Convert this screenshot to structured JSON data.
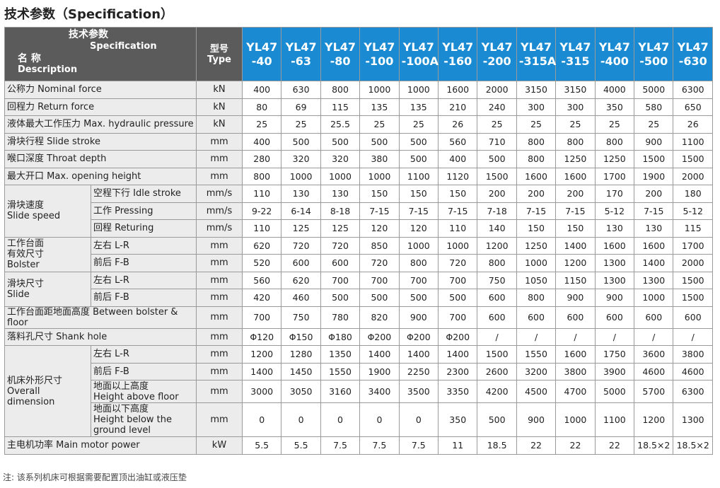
{
  "title": "技术参数（Specification）",
  "header": {
    "spec_cn": "技术参数",
    "spec_en": "Specification",
    "desc_cn": "名 称",
    "desc_en": "Description",
    "type_cn": "型号",
    "type_en": "Type",
    "models": [
      "YL47\n-40",
      "YL47\n-63",
      "YL47\n-80",
      "YL47\n-100",
      "YL47\n-100A",
      "YL47\n-160",
      "YL47\n-200",
      "YL47\n-315A",
      "YL47\n-315",
      "YL47\n-400",
      "YL47\n-500",
      "YL47\n-630"
    ]
  },
  "rows": [
    {
      "label": "公称力  Nominal force",
      "unit": "kN",
      "values": [
        "400",
        "630",
        "800",
        "1000",
        "1000",
        "1600",
        "2000",
        "3150",
        "3150",
        "4000",
        "5000",
        "6300"
      ]
    },
    {
      "label": "回程力  Return force",
      "unit": "kN",
      "values": [
        "80",
        "69",
        "115",
        "135",
        "135",
        "210",
        "240",
        "300",
        "300",
        "350",
        "580",
        "650"
      ]
    },
    {
      "label": "液体最大工作压力 Max. hydraulic pressure",
      "unit": "kN",
      "values": [
        "25",
        "25",
        "25.5",
        "25",
        "25",
        "26",
        "25",
        "25",
        "25",
        "25",
        "25",
        "26"
      ]
    },
    {
      "label": "滑块行程  Slide stroke",
      "unit": "mm",
      "values": [
        "400",
        "500",
        "500",
        "500",
        "500",
        "560",
        "710",
        "800",
        "800",
        "800",
        "900",
        "1100"
      ]
    },
    {
      "label": "喉口深度 Throat depth",
      "unit": "mm",
      "values": [
        "280",
        "320",
        "320",
        "380",
        "500",
        "400",
        "500",
        "800",
        "1250",
        "1250",
        "1500",
        "1500"
      ]
    },
    {
      "label": "最大开口  Max. opening height",
      "unit": "mm",
      "values": [
        "800",
        "1000",
        "1000",
        "1000",
        "1100",
        "1120",
        "1500",
        "1600",
        "1600",
        "1700",
        "1900",
        "2000"
      ]
    },
    {
      "group": "滑块速度\n Slide speed",
      "items": [
        {
          "label": "空程下行 Idle stroke",
          "unit": "mm/s",
          "values": [
            "110",
            "130",
            "130",
            "150",
            "150",
            "150",
            "200",
            "200",
            "200",
            "170",
            "200",
            "180"
          ]
        },
        {
          "label": "工作 Pressing",
          "unit": "mm/s",
          "values": [
            "9-22",
            "6-14",
            "8-18",
            "7-15",
            "7-15",
            "7-15",
            "7-18",
            "7-15",
            "7-15",
            "5-12",
            "7-15",
            "5-12"
          ]
        },
        {
          "label": "回程 Returing",
          "unit": "mm/s",
          "values": [
            "110",
            "125",
            "125",
            "120",
            "120",
            "110",
            "140",
            "150",
            "150",
            "130",
            "130",
            "115"
          ]
        }
      ]
    },
    {
      "group": "工作台面\n有效尺寸\n Bolster",
      "items": [
        {
          "label": "左右 L-R",
          "unit": "mm",
          "values": [
            "620",
            "720",
            "720",
            "850",
            "1000",
            "1000",
            "1200",
            "1250",
            "1400",
            "1600",
            "1600",
            "1700"
          ]
        },
        {
          "label": "前后 F-B",
          "unit": "mm",
          "values": [
            "520",
            "600",
            "600",
            "720",
            "800",
            "720",
            "800",
            "1000",
            "1200",
            "1300",
            "1400",
            "2000"
          ]
        }
      ]
    },
    {
      "group": "滑块尺寸\nSlide",
      "items": [
        {
          "label": "左右 L-R",
          "unit": "mm",
          "values": [
            "560",
            "620",
            "700",
            "700",
            "700",
            "700",
            "750",
            "1050",
            "1150",
            "1300",
            "1300",
            "1500"
          ]
        },
        {
          "label": "前后 F-B",
          "unit": "mm",
          "values": [
            "420",
            "460",
            "500",
            "500",
            "500",
            "500",
            "600",
            "800",
            "900",
            "900",
            "1000",
            "1500"
          ]
        }
      ]
    },
    {
      "label": "工作台面距地面高度 Between bolster & floor",
      "unit": "mm",
      "values": [
        "700",
        "750",
        "780",
        "820",
        "900",
        "700",
        "600",
        "600",
        "600",
        "600",
        "600",
        "600"
      ]
    },
    {
      "label": " 落料孔尺寸 Shank hole",
      "unit": "mm",
      "values": [
        "Φ120",
        "Φ150",
        "Φ180",
        "Φ200",
        "Φ200",
        "Φ200",
        "/",
        "/",
        "/",
        "/",
        "/",
        "/"
      ]
    },
    {
      "group": "机床外形尺寸\n Overall\n dimension",
      "items": [
        {
          "label": "左右 L-R",
          "unit": "mm",
          "values": [
            "1200",
            "1280",
            "1350",
            "1400",
            "1400",
            "1400",
            "1500",
            "1550",
            "1600",
            "1750",
            "3600",
            "3800"
          ]
        },
        {
          "label": "前后 F-B",
          "unit": "mm",
          "values": [
            "1400",
            "1450",
            "1550",
            "1900",
            "2250",
            "2300",
            "2600",
            "3200",
            "3800",
            "3900",
            "4600",
            "4600"
          ]
        },
        {
          "label": "地面以上高度\nHeight above floor",
          "unit": "mm",
          "values": [
            "3000",
            "3050",
            "3160",
            "3400",
            "3500",
            "3350",
            "4200",
            "4500",
            "4700",
            "5000",
            "5700",
            "6300"
          ]
        },
        {
          "label": "地面以下高度\nHeight below the\nground level",
          "unit": "mm",
          "values": [
            "0",
            "0",
            "0",
            "0",
            "0",
            "350",
            "500",
            "900",
            "1000",
            "1100",
            "1200",
            "1300"
          ]
        }
      ]
    },
    {
      "label": "主电机功率 Main motor power",
      "unit": "kW",
      "values": [
        "5.5",
        "5.5",
        "7.5",
        "7.5",
        "7.5",
        "11",
        "18.5",
        "22",
        "22",
        "22",
        "18.5×2",
        "18.5×2"
      ]
    }
  ],
  "note": "注: 该系列机床可根据需要配置顶出油缸或液压垫"
}
